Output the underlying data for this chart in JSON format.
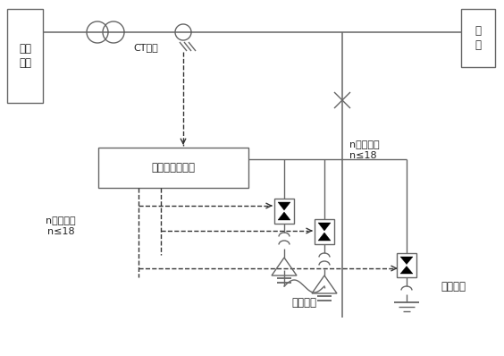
{
  "bg_color": "#ffffff",
  "line_color": "#666666",
  "dark_color": "#333333",
  "text_color": "#222222",
  "fig_width": 5.64,
  "fig_height": 3.98,
  "dpi": 100,
  "labels": {
    "power_system": "电力\n系统",
    "load": "负\n载",
    "ct_signal": "CT信号",
    "controller": "无功补偿控制器",
    "n_output": "n回路输出\nn≤18",
    "n_comp": "n回路补偿\nn≤18",
    "shared_circuit": "共补回路",
    "split_circuit": "分补回路"
  }
}
